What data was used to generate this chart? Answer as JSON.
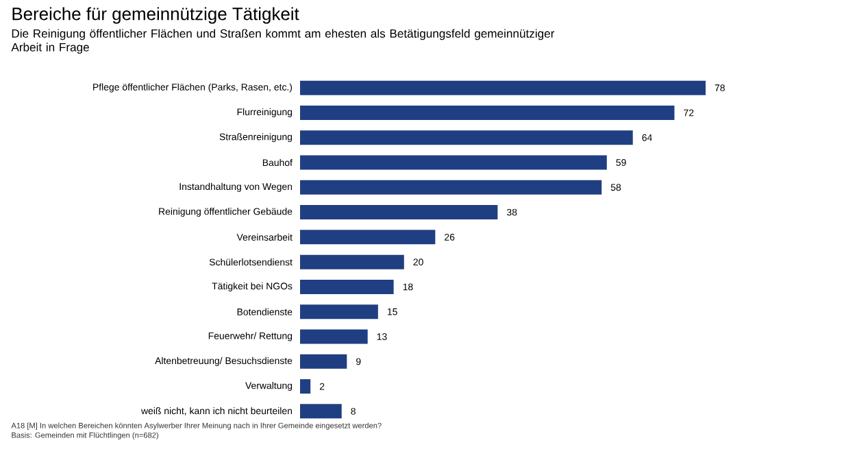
{
  "chart_data": {
    "type": "bar",
    "orientation": "horizontal",
    "title": "Bereiche für gemeinnützige Tätigkeit",
    "subtitle": "Die Reinigung öffentlicher Flächen und Straßen kommt am ehesten als Betätigungsfeld gemeinnütziger Arbeit in Frage",
    "categories": [
      "Pflege öffentlicher Flächen (Parks, Rasen, etc.)",
      "Flurreinigung",
      "Straßenreinigung",
      "Bauhof",
      "Instandhaltung von Wegen",
      "Reinigung öffentlicher Gebäude",
      "Vereinsarbeit",
      "Schülerlotsendienst",
      "Tätigkeit bei NGOs",
      "Botendienste",
      "Feuerwehr/ Rettung",
      "Altenbetreuung/ Besuchsdienste",
      "Verwaltung",
      "weiß nicht, kann ich nicht beurteilen"
    ],
    "values": [
      78,
      72,
      64,
      59,
      58,
      38,
      26,
      20,
      18,
      15,
      13,
      9,
      2,
      8
    ],
    "color": "#203f82",
    "data_labels": true,
    "tick_labels": "y",
    "grid": false,
    "annotations": [
      "A18 [M] In welchen Bereichen könnten Asylwerber Ihrer Meinung nach in Ihrer Gemeinde eingesetzt werden?",
      "Basis: Gemeinden mit Flüchtlingen (n=682)"
    ]
  }
}
